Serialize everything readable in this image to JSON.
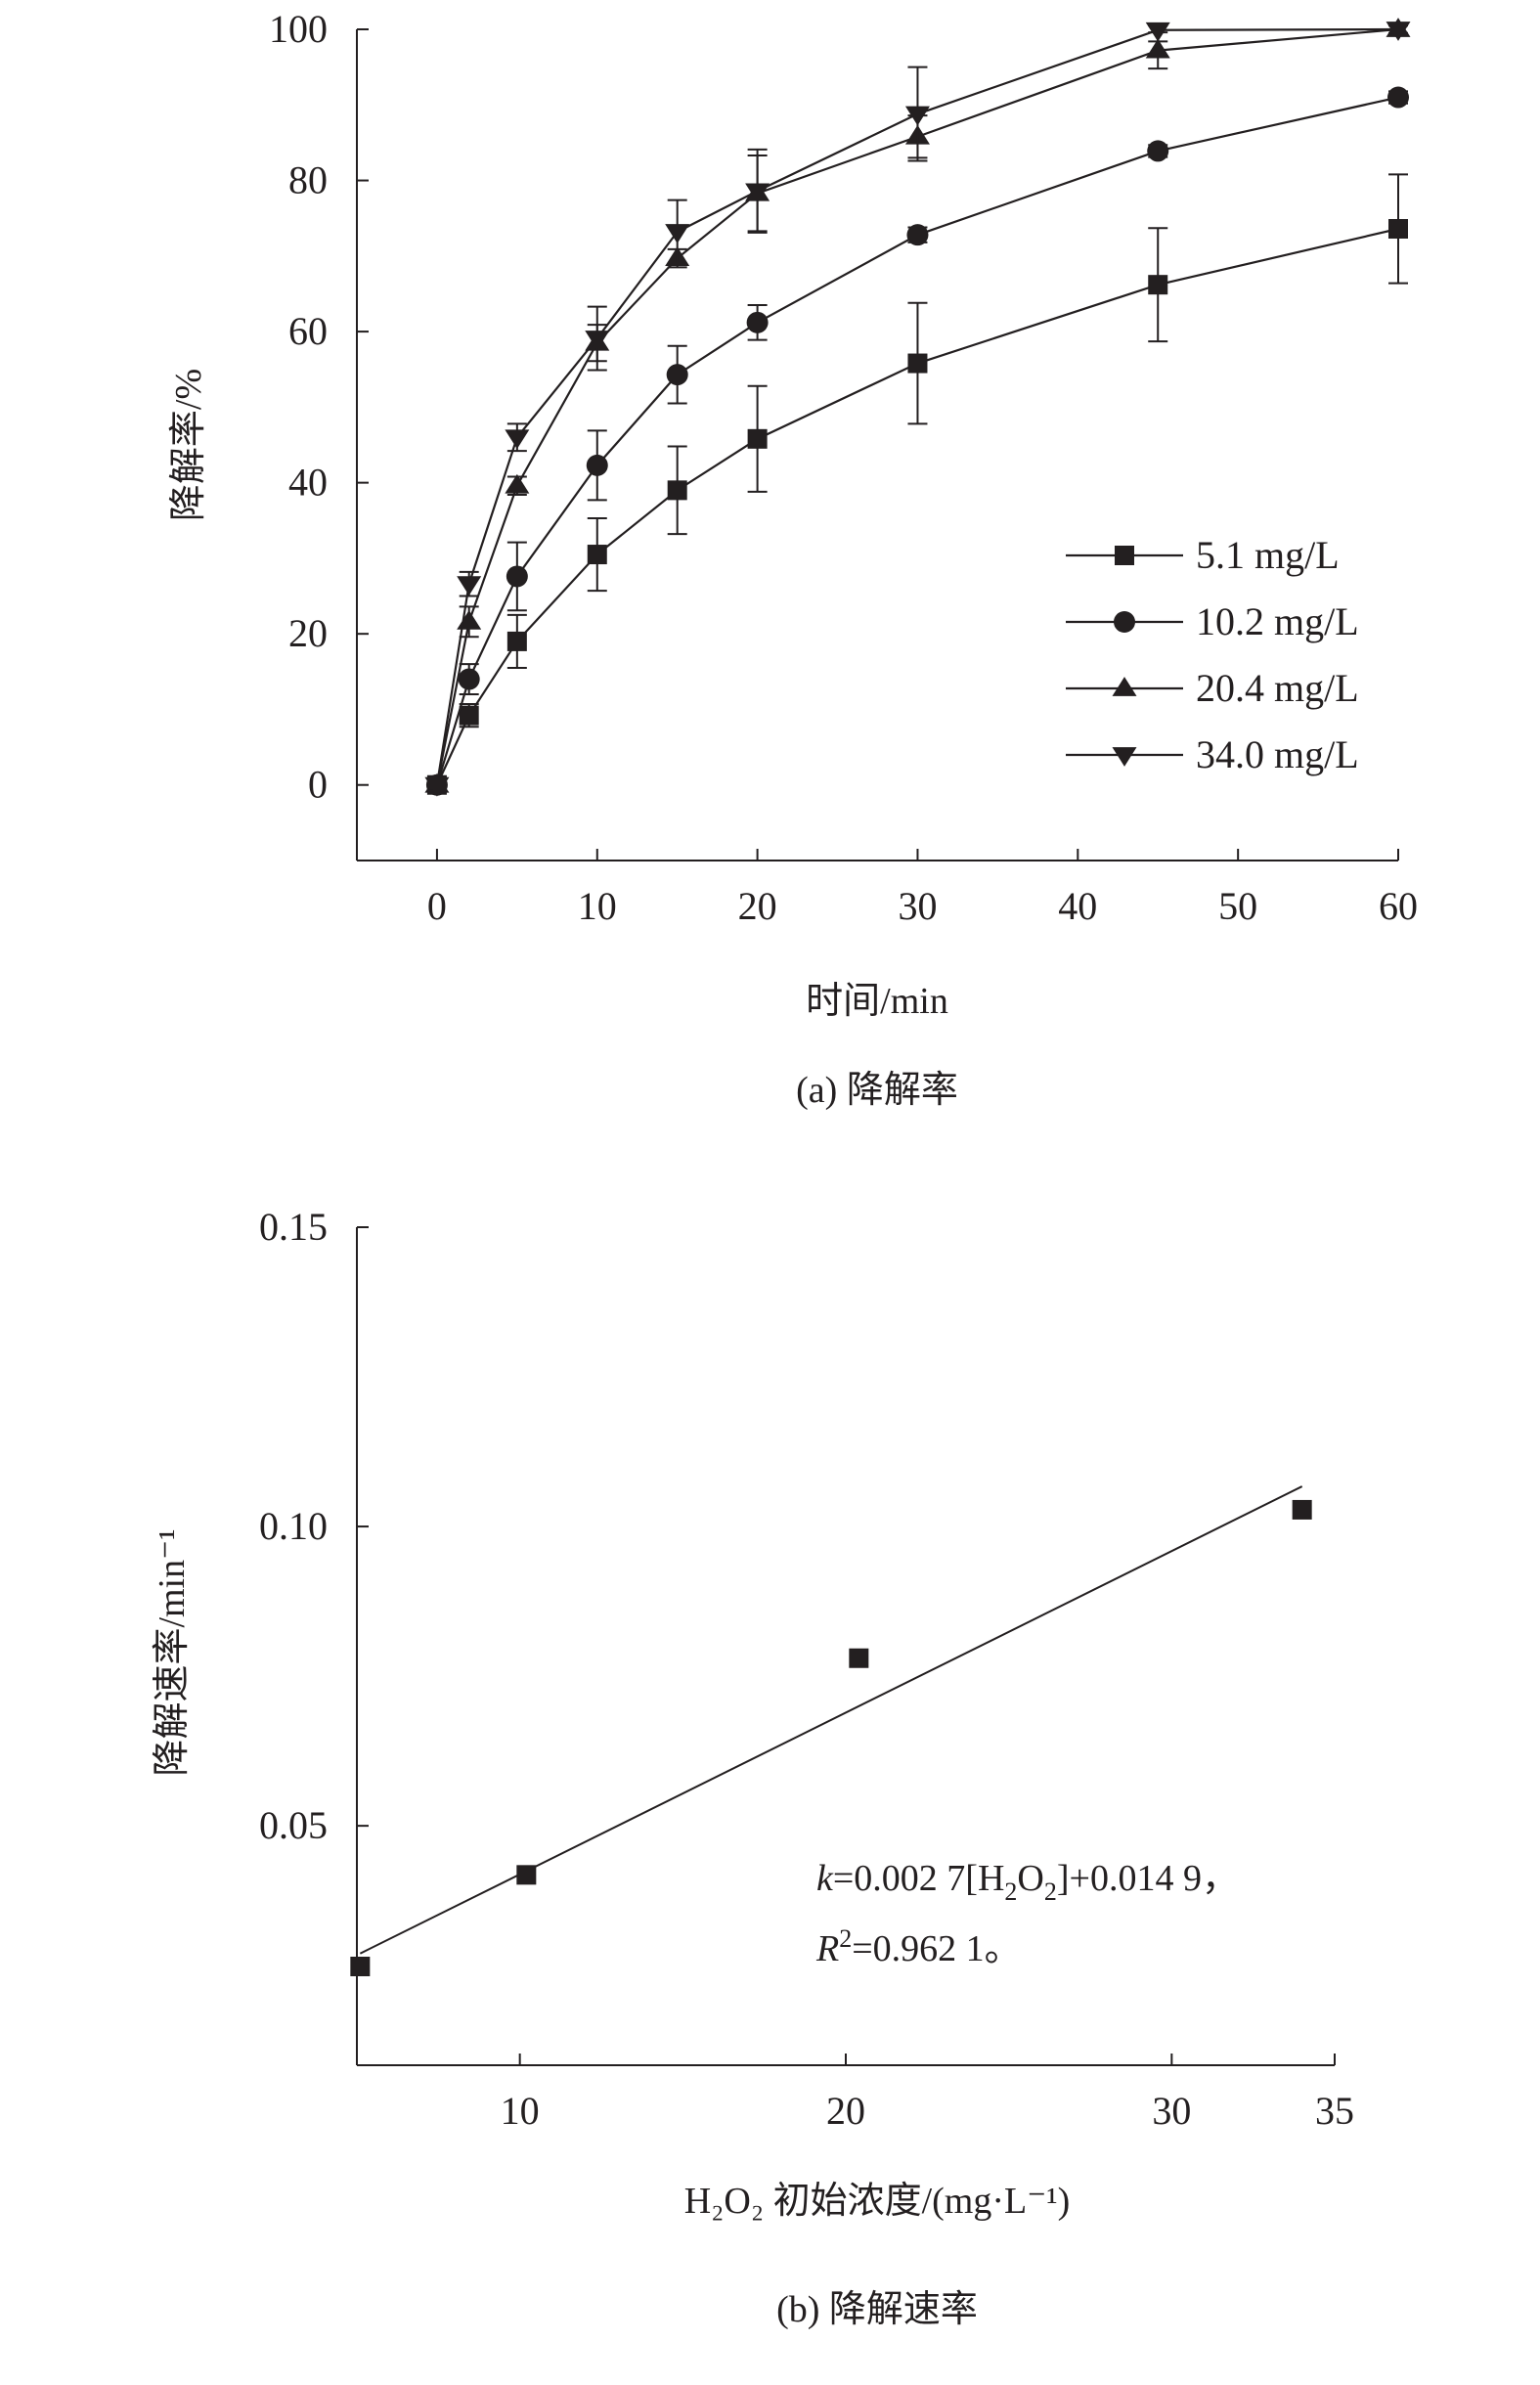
{
  "chart_data": [
    {
      "type": "line",
      "caption": "(a) 降解率",
      "xlabel": "时间/min",
      "ylabel": "降解率/%",
      "xlim": [
        -5,
        60
      ],
      "ylim": [
        -10,
        100
      ],
      "xticks": [
        0,
        10,
        20,
        30,
        40,
        50,
        60
      ],
      "yticks": [
        0,
        20,
        40,
        60,
        80,
        100
      ],
      "x": [
        0,
        2,
        5,
        10,
        15,
        20,
        30,
        45,
        60
      ],
      "legend_position": "bottom-right",
      "series": [
        {
          "name": "5.1 mg/L",
          "marker": "square",
          "values": [
            0,
            9.2,
            19.0,
            30.5,
            39.0,
            45.8,
            55.8,
            66.2,
            73.6
          ],
          "errors": [
            0.8,
            1.5,
            3.5,
            4.8,
            5.8,
            7.0,
            8.0,
            7.5,
            7.2
          ]
        },
        {
          "name": "10.2 mg/L",
          "marker": "circle",
          "values": [
            0,
            14.0,
            27.6,
            42.3,
            54.3,
            61.2,
            72.8,
            83.9,
            91.0
          ],
          "errors": [
            0.8,
            2.0,
            4.5,
            4.6,
            3.8,
            2.3,
            1.0,
            0.8,
            0.8
          ]
        },
        {
          "name": "20.4 mg/L",
          "marker": "triangle-up",
          "values": [
            0,
            21.6,
            39.6,
            58.5,
            69.7,
            78.3,
            85.8,
            97.2,
            100
          ],
          "errors": [
            0.8,
            2.0,
            1.2,
            2.4,
            1.2,
            5.0,
            2.8,
            2.4,
            0.5
          ]
        },
        {
          "name": "34.0 mg/L",
          "marker": "triangle-down",
          "values": [
            0,
            26.6,
            46.0,
            59.1,
            73.2,
            78.6,
            88.8,
            99.9,
            100
          ],
          "errors": [
            0.8,
            1.6,
            1.8,
            4.2,
            4.2,
            5.5,
            6.2,
            1.5,
            0.5
          ]
        }
      ]
    },
    {
      "type": "scatter",
      "caption": "(b) 降解速率",
      "xlabel": "H₂O₂ 初始浓度/(mg·L⁻¹)",
      "ylabel": "降解速率/min⁻¹",
      "xlim": [
        5,
        35
      ],
      "ylim": [
        0.01,
        0.15
      ],
      "xticks": [
        10,
        20,
        30,
        35
      ],
      "yticks": [
        0.05,
        0.1,
        0.15
      ],
      "ytick_labels": [
        "0.05",
        "0.10",
        "0.15"
      ],
      "series": [
        {
          "name": "",
          "marker": "square",
          "x": [
            5.1,
            10.2,
            20.4,
            34.0
          ],
          "y": [
            0.0265,
            0.0418,
            0.078,
            0.1028
          ]
        }
      ],
      "fit": {
        "slope": 0.0027,
        "intercept": 0.0149,
        "x_range": [
          5.1,
          34.0
        ]
      },
      "annotation": {
        "line1": {
          "k": "k",
          "eq": "=0.002 7[H",
          "sub1": "2",
          "mid": "O",
          "sub2": "2",
          "end": "]+0.014 9，"
        },
        "line2": {
          "r": "R",
          "sup": "2",
          "rest": "=0.962 1。"
        }
      }
    }
  ]
}
